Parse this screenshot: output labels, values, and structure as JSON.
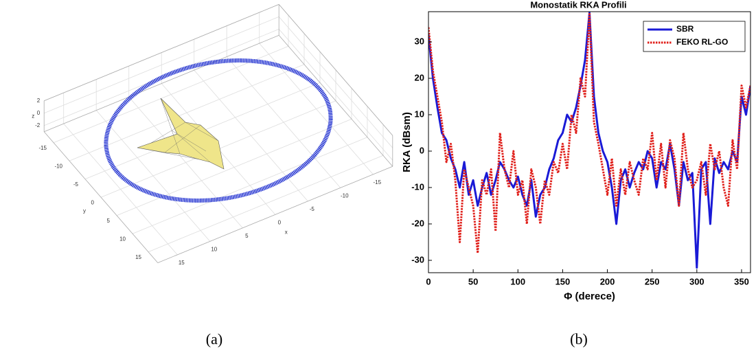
{
  "chart_data": [
    {
      "type": "mesh3d",
      "caption": "(a)",
      "xlabel": "x",
      "ylabel": "y",
      "zlabel": "z",
      "xlim": [
        -18,
        18
      ],
      "ylim": [
        -18,
        18
      ],
      "zlim": [
        -3,
        2
      ],
      "xticks": [
        15,
        10,
        5,
        0,
        -5,
        -10,
        -15
      ],
      "yticks": [
        -15,
        -10,
        -5,
        0,
        5,
        10,
        15
      ],
      "zticks": [
        2,
        0,
        -2
      ],
      "grid": true
    },
    {
      "type": "line",
      "caption": "(b)",
      "title": "Monostatik RKA Profili",
      "xlabel": "Φ (derece)",
      "ylabel": "RKA (dBsm)",
      "xlim": [
        0,
        360
      ],
      "ylim": [
        -33.4,
        38.3
      ],
      "xticks": [
        0,
        50,
        100,
        150,
        200,
        250,
        300,
        350
      ],
      "yticks": [
        -30,
        -20,
        -10,
        0,
        10,
        20,
        30
      ],
      "legend": "upper right",
      "x": [
        0,
        5,
        10,
        15,
        20,
        25,
        30,
        35,
        40,
        45,
        50,
        55,
        60,
        65,
        70,
        75,
        80,
        85,
        90,
        95,
        100,
        105,
        110,
        115,
        120,
        125,
        130,
        135,
        140,
        145,
        150,
        155,
        160,
        165,
        170,
        175,
        180,
        185,
        190,
        195,
        200,
        205,
        210,
        215,
        220,
        225,
        230,
        235,
        240,
        245,
        250,
        255,
        260,
        265,
        270,
        275,
        280,
        285,
        290,
        295,
        300,
        305,
        310,
        315,
        320,
        325,
        330,
        335,
        340,
        345,
        350,
        355,
        360
      ],
      "series": [
        {
          "name": "SBR",
          "color": "#1a1ad6",
          "style": "solid",
          "values": [
            32,
            20,
            12,
            5,
            3,
            -2,
            -5,
            -10,
            -3,
            -12,
            -8,
            -15,
            -10,
            -6,
            -12,
            -8,
            -3,
            -5,
            -8,
            -10,
            -7,
            -12,
            -15,
            -8,
            -18,
            -12,
            -10,
            -5,
            -2,
            3,
            5,
            10,
            8,
            12,
            18,
            25,
            38,
            15,
            5,
            0,
            -3,
            -10,
            -20,
            -8,
            -5,
            -10,
            -6,
            -3,
            -5,
            0,
            -2,
            -10,
            -3,
            -5,
            2,
            -5,
            -15,
            -3,
            -8,
            -6,
            -32,
            -5,
            -3,
            -20,
            -2,
            -6,
            -3,
            -5,
            0,
            -3,
            15,
            10,
            18
          ]
        },
        {
          "name": "FEKO RL-GO",
          "color": "#e0201b",
          "style": "dotted",
          "values": [
            34,
            22,
            15,
            8,
            -3,
            2,
            -8,
            -25,
            -5,
            -10,
            -15,
            -28,
            -8,
            -12,
            -5,
            -22,
            5,
            -5,
            -10,
            0,
            -12,
            -8,
            -20,
            -5,
            -10,
            -20,
            -8,
            -12,
            -3,
            -6,
            2,
            -5,
            10,
            5,
            20,
            15,
            38,
            8,
            2,
            -5,
            -12,
            -2,
            -15,
            -5,
            -12,
            -3,
            -8,
            -12,
            -2,
            -5,
            5,
            -8,
            2,
            -10,
            3,
            -2,
            -15,
            5,
            -5,
            -10,
            -8,
            -3,
            -12,
            2,
            -5,
            0,
            -10,
            -15,
            3,
            -5,
            18,
            12,
            18
          ]
        }
      ]
    }
  ]
}
